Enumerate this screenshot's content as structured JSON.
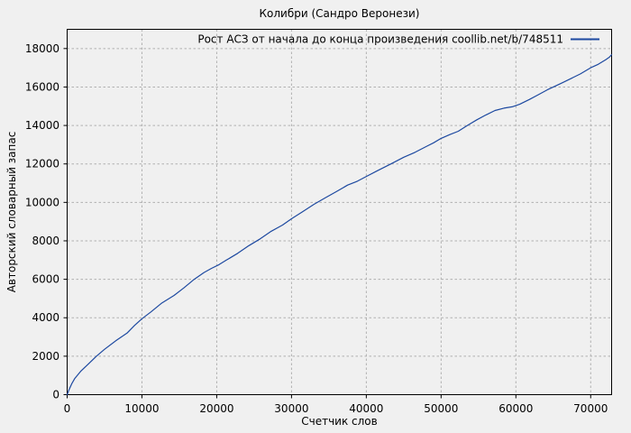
{
  "chart": {
    "title": "Колибри (Сандро Веронези)"
  },
  "chart_data": {
    "type": "line",
    "title": "Колибри (Сандро Веронези)",
    "xlabel": "Счетчик слов",
    "ylabel": "Авторский словарный запас",
    "xlim": [
      0,
      72800
    ],
    "ylim": [
      0,
      19000
    ],
    "x_ticks": [
      0,
      10000,
      20000,
      30000,
      40000,
      50000,
      60000,
      70000
    ],
    "y_ticks": [
      0,
      2000,
      4000,
      6000,
      8000,
      10000,
      12000,
      14000,
      16000,
      18000
    ],
    "grid": true,
    "legend_position": "top-right-inside",
    "series": [
      {
        "name": "Рост АСЗ от начала до конца произведения coollib.net/b/748511",
        "color": "#1d49a0",
        "x": [
          0,
          250,
          600,
          1000,
          1800,
          2800,
          3900,
          5000,
          6500,
          8000,
          9000,
          10000,
          11200,
          12600,
          14300,
          15600,
          17000,
          18300,
          19300,
          20300,
          21300,
          22800,
          24300,
          25800,
          27300,
          28800,
          30000,
          31500,
          33000,
          34500,
          36000,
          37500,
          38800,
          40000,
          41500,
          43300,
          45000,
          46500,
          48000,
          49000,
          50000,
          51200,
          52300,
          53500,
          54800,
          56000,
          57200,
          58400,
          59500,
          60500,
          61800,
          63000,
          64200,
          65000,
          66200,
          67400,
          68600,
          70000,
          71000,
          72000,
          72500,
          72800
        ],
        "y": [
          0,
          260,
          560,
          830,
          1210,
          1580,
          2000,
          2360,
          2800,
          3200,
          3600,
          3950,
          4300,
          4750,
          5160,
          5550,
          6000,
          6350,
          6570,
          6760,
          7000,
          7350,
          7750,
          8100,
          8500,
          8820,
          9150,
          9520,
          9900,
          10230,
          10560,
          10900,
          11100,
          11350,
          11650,
          12000,
          12350,
          12600,
          12900,
          13100,
          13330,
          13530,
          13700,
          14000,
          14300,
          14550,
          14780,
          14900,
          14970,
          15100,
          15350,
          15600,
          15850,
          16000,
          16220,
          16450,
          16680,
          17000,
          17180,
          17420,
          17550,
          17680
        ]
      }
    ]
  },
  "colors": {
    "background": "#f0f0f0",
    "plot_border": "#000000",
    "grid": "#b0b0b0",
    "tick": "#000000",
    "text": "#000000",
    "series_line": "#1d49a0"
  }
}
